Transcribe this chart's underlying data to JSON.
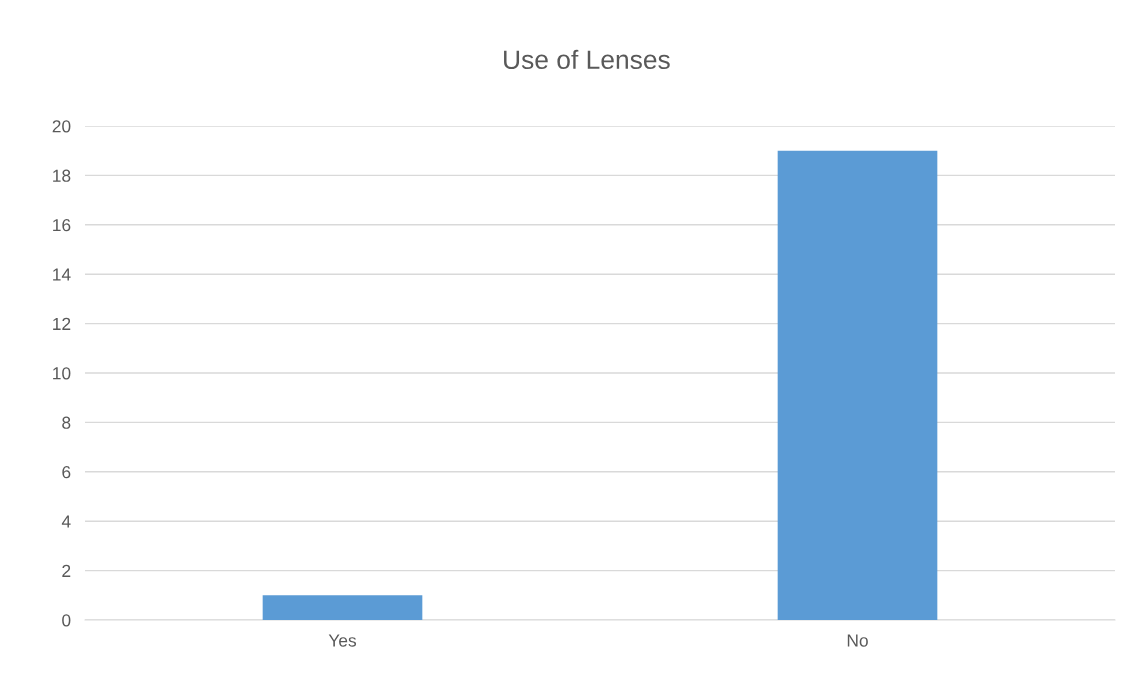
{
  "chart_data": {
    "type": "bar",
    "title": "Use of Lenses",
    "categories": [
      "Yes",
      "No"
    ],
    "values": [
      1,
      19
    ],
    "color": "#5b9bd5",
    "ylim": [
      0,
      20
    ],
    "yticks": [
      0,
      2,
      4,
      6,
      8,
      10,
      12,
      14,
      16,
      18,
      20
    ],
    "grid": "y"
  }
}
